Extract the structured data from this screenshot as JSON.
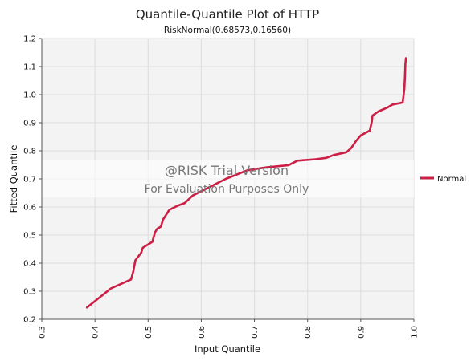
{
  "chart_data": {
    "type": "line",
    "title": "Quantile-Quantile Plot of HTTP",
    "subtitle": "RiskNormal(0.68573,0.16560)",
    "xlabel": "Input Quantile",
    "ylabel": "Fitted Quantile",
    "xlim": [
      0.3,
      1.0
    ],
    "ylim": [
      0.2,
      1.2
    ],
    "xticks": [
      "0.3",
      "0.4",
      "0.5",
      "0.6",
      "0.7",
      "0.8",
      "0.9",
      "1.0"
    ],
    "yticks": [
      "0.2",
      "0.3",
      "0.4",
      "0.5",
      "0.6",
      "0.7",
      "0.8",
      "0.9",
      "1.0",
      "1.1",
      "1.2"
    ],
    "grid": true,
    "legend_position": "right",
    "series": [
      {
        "name": "Normal",
        "color": "#cc1f45",
        "points": [
          [
            0.385,
            0.242
          ],
          [
            0.43,
            0.31
          ],
          [
            0.468,
            0.342
          ],
          [
            0.472,
            0.37
          ],
          [
            0.476,
            0.41
          ],
          [
            0.487,
            0.437
          ],
          [
            0.49,
            0.455
          ],
          [
            0.508,
            0.476
          ],
          [
            0.513,
            0.51
          ],
          [
            0.517,
            0.522
          ],
          [
            0.524,
            0.53
          ],
          [
            0.528,
            0.555
          ],
          [
            0.54,
            0.59
          ],
          [
            0.556,
            0.605
          ],
          [
            0.569,
            0.614
          ],
          [
            0.584,
            0.641
          ],
          [
            0.605,
            0.661
          ],
          [
            0.646,
            0.7
          ],
          [
            0.687,
            0.731
          ],
          [
            0.722,
            0.741
          ],
          [
            0.764,
            0.749
          ],
          [
            0.781,
            0.765
          ],
          [
            0.815,
            0.77
          ],
          [
            0.835,
            0.775
          ],
          [
            0.849,
            0.785
          ],
          [
            0.873,
            0.795
          ],
          [
            0.882,
            0.81
          ],
          [
            0.891,
            0.835
          ],
          [
            0.9,
            0.855
          ],
          [
            0.917,
            0.872
          ],
          [
            0.921,
            0.905
          ],
          [
            0.922,
            0.925
          ],
          [
            0.933,
            0.94
          ],
          [
            0.951,
            0.955
          ],
          [
            0.96,
            0.965
          ],
          [
            0.979,
            0.972
          ],
          [
            0.98,
            0.99
          ],
          [
            0.982,
            1.02
          ],
          [
            0.983,
            1.06
          ],
          [
            0.984,
            1.11
          ],
          [
            0.985,
            1.13
          ]
        ]
      }
    ],
    "watermark": {
      "line1": "@RISK Trial Version",
      "line2": "For Evaluation Purposes Only"
    }
  }
}
